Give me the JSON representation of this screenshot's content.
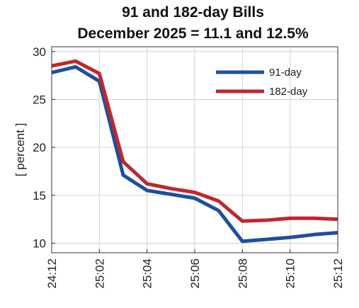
{
  "chart_data": {
    "type": "line",
    "title_lines": [
      "91 and 182-day Bills",
      "December 2025 = 11.1 and 12.5%"
    ],
    "ylabel": "[ percent ]",
    "xlabel": "",
    "x_categories": [
      "24:12",
      "25:01",
      "25:02",
      "25:03",
      "25:04",
      "25:05",
      "25:06",
      "25:07",
      "25:08",
      "25:09",
      "25:10",
      "25:11",
      "25:12"
    ],
    "x_tick_labels": [
      "24:12",
      "25:02",
      "25:04",
      "25:06",
      "25:08",
      "25:10",
      "25:12"
    ],
    "y_ticks": [
      10,
      15,
      20,
      25,
      30
    ],
    "ylim": [
      9,
      30.5
    ],
    "grid": true,
    "legend_position": "top-right",
    "series": [
      {
        "name": "91-day",
        "color": "#1f4e9c",
        "values": [
          27.8,
          28.4,
          26.9,
          17.1,
          15.5,
          15.1,
          14.7,
          13.4,
          10.2,
          10.4,
          10.6,
          10.9,
          11.1
        ]
      },
      {
        "name": "182-day",
        "color": "#c0272d",
        "values": [
          28.5,
          29.0,
          27.7,
          18.5,
          16.2,
          15.7,
          15.3,
          14.4,
          12.3,
          12.4,
          12.6,
          12.6,
          12.5
        ]
      }
    ]
  }
}
